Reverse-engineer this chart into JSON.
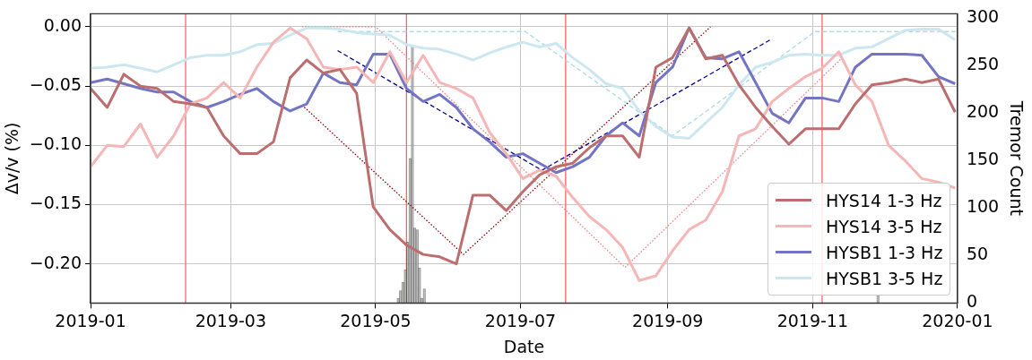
{
  "chart_data": {
    "type": "line",
    "xlabel": "Date",
    "ylabel": "Δv/v (%)",
    "y2label": "Tremor Count",
    "x": [
      "2019-01-01",
      "2019-01-08",
      "2019-01-15",
      "2019-01-22",
      "2019-01-29",
      "2019-02-05",
      "2019-02-12",
      "2019-02-19",
      "2019-02-26",
      "2019-03-05",
      "2019-03-12",
      "2019-03-19",
      "2019-03-26",
      "2019-04-02",
      "2019-04-09",
      "2019-04-16",
      "2019-04-23",
      "2019-04-30",
      "2019-05-07",
      "2019-05-14",
      "2019-05-21",
      "2019-05-28",
      "2019-06-04",
      "2019-06-11",
      "2019-06-18",
      "2019-06-25",
      "2019-07-02",
      "2019-07-09",
      "2019-07-16",
      "2019-07-23",
      "2019-07-30",
      "2019-08-06",
      "2019-08-13",
      "2019-08-20",
      "2019-08-27",
      "2019-09-03",
      "2019-09-10",
      "2019-09-17",
      "2019-09-24",
      "2019-10-01",
      "2019-10-08",
      "2019-10-15",
      "2019-10-22",
      "2019-10-29",
      "2019-11-05",
      "2019-11-12",
      "2019-11-19",
      "2019-11-26",
      "2019-12-03",
      "2019-12-10",
      "2019-12-17",
      "2019-12-24",
      "2019-12-31"
    ],
    "series": [
      {
        "type": "histogram",
        "axis": "y2",
        "color": "#c0c0c0",
        "bins": [
          "2019-05-10",
          "2019-05-11",
          "2019-05-12",
          "2019-05-13",
          "2019-05-14",
          "2019-05-15",
          "2019-05-16",
          "2019-05-17",
          "2019-05-18",
          "2019-05-19",
          "2019-05-20",
          "2019-05-21",
          "2019-05-22"
        ],
        "values": [
          5,
          13,
          22,
          35,
          64,
          152,
          271,
          79,
          77,
          37,
          5,
          15
        ]
      },
      {
        "type": "histogram",
        "axis": "y2",
        "color": "#c0c0c0",
        "bins": [
          "2019-11-28",
          "2019-11-29"
        ],
        "values": [
          8
        ]
      },
      {
        "name": "HYS14 1-3 Hz",
        "color": "#bc6e6e",
        "values": [
          -0.052,
          -0.068,
          -0.04,
          -0.05,
          -0.052,
          -0.063,
          -0.065,
          -0.068,
          -0.092,
          -0.107,
          -0.107,
          -0.097,
          -0.043,
          -0.028,
          -0.039,
          -0.036,
          -0.056,
          -0.152,
          -0.171,
          -0.184,
          -0.192,
          -0.194,
          -0.2,
          -0.142,
          -0.142,
          -0.155,
          -0.139,
          -0.125,
          -0.118,
          -0.115,
          -0.102,
          -0.092,
          -0.092,
          -0.11,
          -0.034,
          -0.026,
          -0.001,
          -0.027,
          -0.024,
          -0.049,
          -0.068,
          -0.084,
          -0.099,
          -0.086,
          -0.086,
          -0.086,
          -0.065,
          -0.049,
          -0.047,
          -0.044,
          -0.047,
          -0.044,
          -0.072
        ]
      },
      {
        "name": "HYS14 3-5 Hz",
        "color": "#f4b6b6",
        "values": [
          -0.118,
          -0.1,
          -0.101,
          -0.082,
          -0.11,
          -0.092,
          -0.065,
          -0.06,
          -0.047,
          -0.06,
          -0.034,
          -0.013,
          -0.001,
          -0.01,
          -0.034,
          -0.036,
          -0.034,
          -0.047,
          -0.021,
          -0.047,
          -0.024,
          -0.047,
          -0.052,
          -0.06,
          -0.089,
          -0.107,
          -0.128,
          -0.121,
          -0.126,
          -0.144,
          -0.16,
          -0.171,
          -0.186,
          -0.214,
          -0.21,
          -0.189,
          -0.171,
          -0.163,
          -0.139,
          -0.092,
          -0.086,
          -0.063,
          -0.052,
          -0.042,
          -0.035,
          -0.021,
          -0.049,
          -0.063,
          -0.1,
          -0.113,
          -0.128,
          -0.131,
          -0.136
        ]
      },
      {
        "name": "HYSB1 1-3 Hz",
        "color": "#7474c4",
        "values": [
          -0.047,
          -0.044,
          -0.048,
          -0.052,
          -0.055,
          -0.055,
          -0.063,
          -0.068,
          -0.063,
          -0.057,
          -0.052,
          -0.063,
          -0.071,
          -0.065,
          -0.039,
          -0.047,
          -0.049,
          -0.023,
          -0.023,
          -0.052,
          -0.063,
          -0.057,
          -0.068,
          -0.086,
          -0.097,
          -0.11,
          -0.107,
          -0.115,
          -0.123,
          -0.118,
          -0.11,
          -0.092,
          -0.081,
          -0.092,
          -0.047,
          -0.034,
          -0.001,
          -0.026,
          -0.027,
          -0.021,
          -0.047,
          -0.073,
          -0.081,
          -0.06,
          -0.06,
          -0.063,
          -0.034,
          -0.023,
          -0.023,
          -0.023,
          -0.024,
          -0.042,
          -0.048
        ]
      },
      {
        "name": "HYSB1 3-5 Hz",
        "color": "#cce7ef",
        "values": [
          -0.035,
          -0.034,
          -0.032,
          -0.035,
          -0.038,
          -0.032,
          -0.026,
          -0.024,
          -0.024,
          -0.021,
          -0.015,
          -0.014,
          -0.007,
          -0.001,
          -0.001,
          -0.002,
          -0.005,
          -0.006,
          -0.007,
          -0.015,
          -0.018,
          -0.019,
          -0.023,
          -0.028,
          -0.022,
          -0.017,
          -0.013,
          -0.017,
          -0.014,
          -0.026,
          -0.036,
          -0.048,
          -0.052,
          -0.071,
          -0.084,
          -0.093,
          -0.094,
          -0.081,
          -0.068,
          -0.049,
          -0.034,
          -0.03,
          -0.024,
          -0.023,
          -0.024,
          -0.024,
          -0.018,
          -0.017,
          -0.01,
          -0.003,
          -0.002,
          -0.002,
          -0.011
        ]
      },
      {
        "color": "#8b0000",
        "line_style": "dotted",
        "x": [
          "2019-03-31",
          "2019-06-07",
          "2019-09-19"
        ],
        "values": [
          -0.066,
          -0.192,
          0.0
        ]
      },
      {
        "color": "#f08080",
        "line_style": "dotted",
        "x": [
          "2019-03-31",
          "2019-05-01",
          "2019-08-14",
          "2019-11-14"
        ],
        "values": [
          0.0,
          0.0,
          -0.203,
          -0.025
        ]
      },
      {
        "color": "#00008b",
        "line_style": "dashed",
        "x": [
          "2019-04-15",
          "2019-07-10",
          "2019-10-15"
        ],
        "values": [
          -0.02,
          -0.121,
          -0.01
        ]
      },
      {
        "color": "#add8e6",
        "line_style": "dashed",
        "x": [
          "2019-04-15",
          "2019-07-03",
          "2019-09-03",
          "2019-11-02",
          "2020-01-01"
        ],
        "values": [
          -0.004,
          -0.004,
          -0.092,
          -0.004,
          -0.004
        ]
      }
    ],
    "ref_lines": [
      {
        "axis": "x",
        "value": "2019-02-10",
        "color": "#ff6666"
      },
      {
        "axis": "x",
        "value": "2019-05-14",
        "color": "#ff6666"
      },
      {
        "axis": "x",
        "value": "2019-07-20",
        "color": "#ff6666"
      },
      {
        "axis": "x",
        "value": "2019-11-05",
        "color": "#ff6666"
      }
    ],
    "xlim": [
      "2019-01",
      "2020-01"
    ],
    "xticks": [
      "2019-01",
      "2019-03",
      "2019-05",
      "2019-07",
      "2019-09",
      "2019-11",
      "2020-01"
    ],
    "ylim": [
      -0.233,
      0.011
    ],
    "yticks": [
      {
        "value": -0.2,
        "label": "−0.20"
      },
      {
        "value": -0.15,
        "label": "−0.15"
      },
      {
        "value": -0.1,
        "label": "−0.10"
      },
      {
        "value": -0.05,
        "label": "−0.05"
      },
      {
        "value": 0,
        "label": "0.00"
      }
    ],
    "y2lim": [
      0,
      304
    ],
    "y2ticks": [
      0,
      50,
      100,
      150,
      200,
      250,
      300
    ],
    "grid": true,
    "legend": "bottom right",
    "marker": "none",
    "line_style": "solid"
  }
}
